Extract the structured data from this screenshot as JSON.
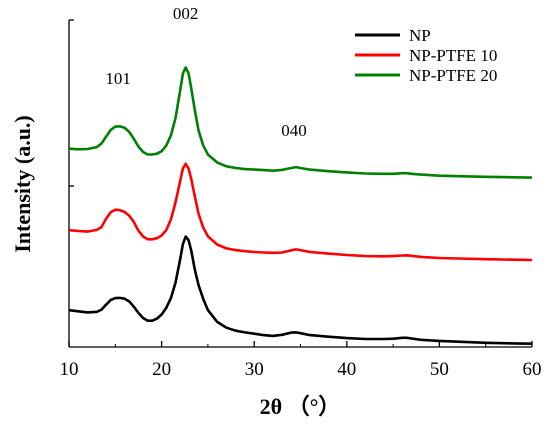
{
  "chart_data": {
    "type": "line",
    "title": "",
    "xlabel": "2θ （°）",
    "ylabel": "Intensity (a.u.)",
    "xlim": [
      10,
      60
    ],
    "x_ticks": [
      10,
      20,
      30,
      40,
      50,
      60
    ],
    "y_ticks_labeled": false,
    "grid": false,
    "legend_position": "top-right",
    "annotations": [
      {
        "text": "101",
        "x": 15.3
      },
      {
        "text": "002",
        "x": 22.6
      },
      {
        "text": "040",
        "x": 34.3
      }
    ],
    "series": [
      {
        "name": "NP",
        "color": "#000000",
        "x": [
          10,
          11,
          12,
          13,
          13.5,
          14,
          14.5,
          15,
          15.5,
          16,
          16.5,
          17,
          17.5,
          18,
          18.5,
          19,
          19.5,
          20,
          20.5,
          21,
          21.5,
          22,
          22.3,
          22.6,
          22.9,
          23.2,
          23.6,
          24,
          24.5,
          25,
          26,
          27,
          28,
          29,
          30,
          31,
          32,
          33,
          34,
          34.5,
          35,
          36,
          38,
          40,
          42,
          44,
          45,
          46,
          46.5,
          47,
          48,
          50,
          52,
          55,
          58,
          60
        ],
        "y": [
          4.05,
          3.93,
          3.81,
          3.87,
          4.11,
          4.65,
          5.17,
          5.38,
          5.41,
          5.32,
          5.02,
          4.44,
          3.75,
          3.19,
          2.9,
          2.9,
          3.13,
          3.58,
          4.29,
          5.38,
          7.08,
          9.63,
          11.33,
          12.15,
          11.77,
          10.65,
          8.48,
          6.79,
          5.27,
          4.06,
          2.76,
          2.12,
          1.79,
          1.61,
          1.46,
          1.31,
          1.22,
          1.34,
          1.58,
          1.61,
          1.52,
          1.31,
          1.13,
          0.98,
          0.88,
          0.88,
          0.91,
          1.01,
          1.01,
          0.94,
          0.79,
          0.67,
          0.58,
          0.46,
          0.4,
          0.36
        ]
      },
      {
        "name": "NP-PTFE 10",
        "color": "#ff0000",
        "x": [
          10,
          11,
          12,
          13,
          13.5,
          14,
          14.5,
          15,
          15.5,
          16,
          16.5,
          17,
          17.5,
          18,
          18.5,
          19,
          19.5,
          20,
          20.5,
          21,
          21.5,
          22,
          22.3,
          22.6,
          22.9,
          23.2,
          23.6,
          24,
          24.5,
          25,
          26,
          27,
          28,
          29,
          30,
          31,
          32,
          33,
          34,
          34.5,
          35,
          36,
          38,
          40,
          42,
          44,
          45,
          46,
          46.5,
          47,
          48,
          50,
          52,
          55,
          58,
          60
        ],
        "y": [
          12.86,
          12.77,
          12.71,
          12.89,
          13.19,
          14.1,
          14.83,
          15.12,
          15.06,
          14.86,
          14.47,
          13.77,
          12.8,
          12.16,
          11.86,
          11.86,
          11.98,
          12.28,
          12.86,
          14.04,
          15.92,
          18.23,
          19.66,
          20.17,
          19.66,
          18.53,
          16.53,
          14.65,
          13.13,
          12.19,
          11.28,
          10.86,
          10.67,
          10.55,
          10.46,
          10.4,
          10.37,
          10.4,
          10.64,
          10.74,
          10.67,
          10.46,
          10.28,
          10.13,
          10.01,
          9.98,
          10.01,
          10.07,
          10.1,
          10.04,
          9.92,
          9.8,
          9.74,
          9.67,
          9.61,
          9.58
        ]
      },
      {
        "name": "NP-PTFE 20",
        "color": "#008000",
        "x": [
          10,
          11,
          12,
          13,
          13.5,
          14,
          14.5,
          15,
          15.5,
          16,
          16.5,
          17,
          17.5,
          18,
          18.5,
          19,
          19.5,
          20,
          20.5,
          21,
          21.5,
          22,
          22.3,
          22.6,
          22.9,
          23.2,
          23.6,
          24,
          24.5,
          25,
          26,
          27,
          28,
          29,
          30,
          31,
          32,
          33,
          34,
          34.5,
          35,
          36,
          38,
          40,
          42,
          44,
          45,
          46,
          46.5,
          47,
          48,
          50,
          52,
          55,
          58,
          60
        ],
        "y": [
          21.83,
          21.77,
          21.8,
          22.01,
          22.38,
          23.14,
          23.9,
          24.26,
          24.29,
          24.14,
          23.68,
          22.92,
          22.07,
          21.47,
          21.19,
          21.19,
          21.28,
          21.56,
          22.16,
          23.29,
          25.2,
          28.2,
          30.11,
          30.77,
          30.14,
          28.53,
          26.02,
          23.81,
          22.16,
          21.19,
          20.31,
          19.89,
          19.71,
          19.59,
          19.53,
          19.47,
          19.41,
          19.5,
          19.71,
          19.8,
          19.71,
          19.53,
          19.35,
          19.22,
          19.1,
          19.07,
          19.07,
          19.13,
          19.13,
          19.07,
          18.98,
          18.86,
          18.8,
          18.74,
          18.68,
          18.65
        ]
      }
    ]
  }
}
